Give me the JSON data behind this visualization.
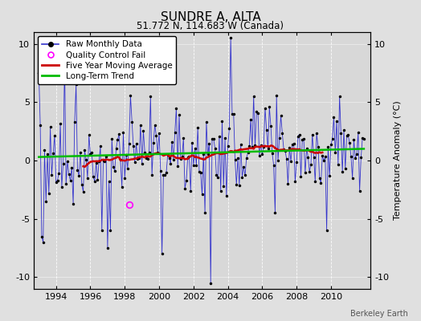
{
  "title": "SUNDRE A, ALTA",
  "subtitle": "51.772 N, 114.683 W (Canada)",
  "ylabel": "Temperature Anomaly (°C)",
  "xlim": [
    1992.7,
    2012.3
  ],
  "ylim": [
    -11,
    11
  ],
  "yticks": [
    -10,
    -5,
    0,
    5,
    10
  ],
  "xticks": [
    1994,
    1996,
    1998,
    2000,
    2002,
    2004,
    2006,
    2008,
    2010
  ],
  "background_color": "#e0e0e0",
  "plot_bg_color": "#d8d8d8",
  "raw_color": "#3333cc",
  "raw_linewidth": 0.6,
  "marker_color": "#000000",
  "marker_size": 2.5,
  "qc_fail_color": "#ff00ff",
  "moving_avg_color": "#cc0000",
  "moving_avg_linewidth": 1.8,
  "trend_color": "#00bb00",
  "trend_linewidth": 1.8,
  "watermark": "Berkeley Earth",
  "legend_fontsize": 7.5,
  "title_fontsize": 11,
  "subtitle_fontsize": 8.5
}
